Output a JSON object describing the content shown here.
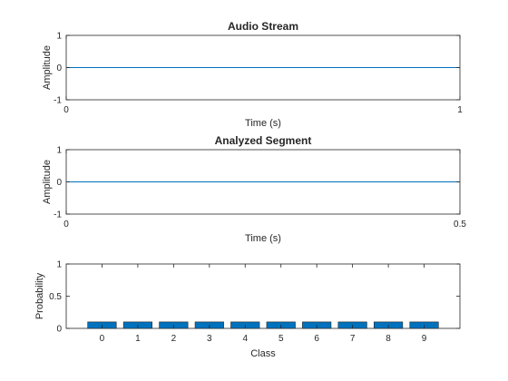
{
  "chart_data": [
    {
      "type": "line",
      "title": "Audio Stream",
      "xlabel": "Time (s)",
      "ylabel": "Amplitude",
      "xlim": [
        0,
        1
      ],
      "ylim": [
        -1,
        1
      ],
      "xticks": [
        0,
        1
      ],
      "yticks": [
        -1,
        0,
        1
      ],
      "series": [
        {
          "x": [
            0,
            0.25,
            0.5,
            0.75,
            1
          ],
          "y": [
            0,
            0,
            0,
            0,
            0
          ]
        }
      ],
      "line_color": "#0072bd"
    },
    {
      "type": "line",
      "title": "Analyzed Segment",
      "xlabel": "Time (s)",
      "ylabel": "Amplitude",
      "xlim": [
        0,
        0.5
      ],
      "ylim": [
        -1,
        1
      ],
      "xticks": [
        0,
        0.5
      ],
      "yticks": [
        -1,
        0,
        1
      ],
      "series": [
        {
          "x": [
            0,
            0.125,
            0.25,
            0.375,
            0.5
          ],
          "y": [
            0,
            0,
            0,
            0,
            0
          ]
        }
      ],
      "line_color": "#0072bd"
    },
    {
      "type": "bar",
      "title": "",
      "xlabel": "Class",
      "ylabel": "Probability",
      "ylim": [
        0,
        1
      ],
      "yticks": [
        0,
        0.5,
        1
      ],
      "categories": [
        "0",
        "1",
        "2",
        "3",
        "4",
        "5",
        "6",
        "7",
        "8",
        "9"
      ],
      "values": [
        0.1,
        0.1,
        0.1,
        0.1,
        0.1,
        0.1,
        0.1,
        0.1,
        0.1,
        0.1
      ],
      "bar_color": "#0072bd"
    }
  ]
}
